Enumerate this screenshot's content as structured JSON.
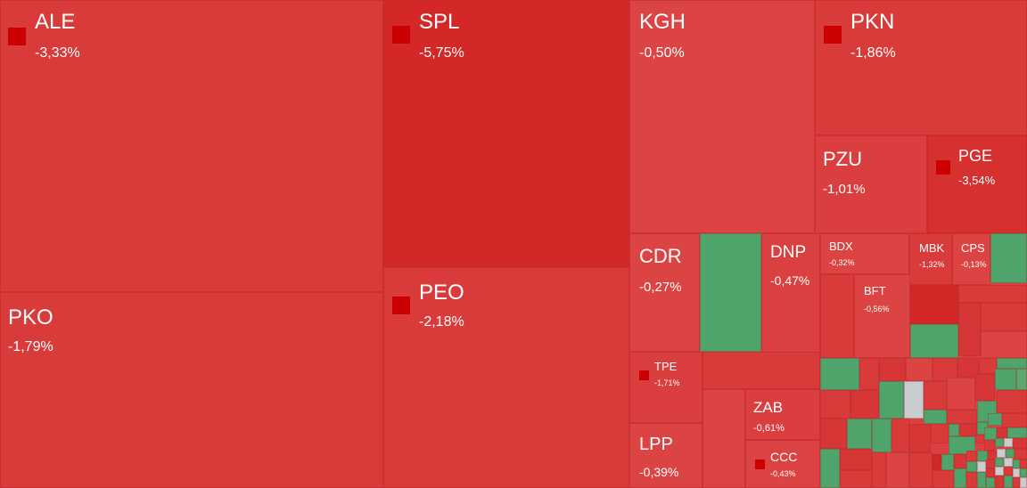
{
  "chart_data": {
    "type": "treemap",
    "colors": {
      "negative": "#d93b3b",
      "strong_negative": "#d42828",
      "positive": "#4ea46a",
      "neutral": "#c9cdd2",
      "marker": "#cc0000"
    },
    "items": [
      {
        "ticker": "ALE",
        "change": "-3,33%",
        "marker": true
      },
      {
        "ticker": "SPL",
        "change": "-5,75%",
        "marker": true
      },
      {
        "ticker": "KGH",
        "change": "-0,50%",
        "marker": false
      },
      {
        "ticker": "PKN",
        "change": "-1,86%",
        "marker": true
      },
      {
        "ticker": "PKO",
        "change": "-1,79%",
        "marker": false
      },
      {
        "ticker": "PEO",
        "change": "-2,18%",
        "marker": true
      },
      {
        "ticker": "PZU",
        "change": "-1,01%",
        "marker": false
      },
      {
        "ticker": "PGE",
        "change": "-3,54%",
        "marker": true
      },
      {
        "ticker": "CDR",
        "change": "-0,27%",
        "marker": false
      },
      {
        "ticker": "DNP",
        "change": "-0,47%",
        "marker": false
      },
      {
        "ticker": "BDX",
        "change": "-0,32%",
        "marker": false
      },
      {
        "ticker": "MBK",
        "change": "-1,32%",
        "marker": false
      },
      {
        "ticker": "CPS",
        "change": "-0,13%",
        "marker": false
      },
      {
        "ticker": "BFT",
        "change": "-0,56%",
        "marker": false
      },
      {
        "ticker": "TPE",
        "change": "-1,71%",
        "marker": true
      },
      {
        "ticker": "ZAB",
        "change": "-0,61%",
        "marker": false
      },
      {
        "ticker": "LPP",
        "change": "-0,39%",
        "marker": false
      },
      {
        "ticker": "CCC",
        "change": "-0,43%",
        "marker": true
      }
    ]
  }
}
